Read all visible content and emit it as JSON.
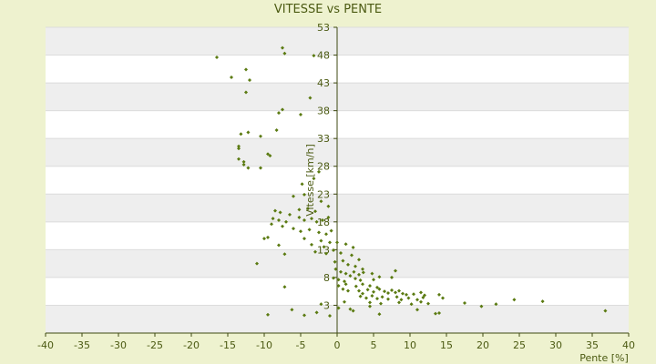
{
  "chart_data": {
    "type": "scatter",
    "title": "VITESSE vs PENTE",
    "xlabel": "Pente [%]",
    "ylabel": "Vitesse [km/h]",
    "xlim": [
      -40,
      40
    ],
    "ylim": [
      -2,
      53
    ],
    "xticks": [
      -40,
      -35,
      -30,
      -25,
      -20,
      -15,
      -10,
      -5,
      0,
      5,
      10,
      15,
      20,
      25,
      30,
      35,
      40
    ],
    "yticks": [
      3,
      8,
      13,
      18,
      23,
      28,
      33,
      38,
      43,
      48,
      53
    ],
    "grid": "horizontal bands",
    "legend": "none",
    "colors": {
      "background": "#eef2cf",
      "band_light": "#ffffff",
      "band_dark": "#eeeeee",
      "marker": "#5a7a10",
      "axis": "#3f4a12",
      "text": "#4b5a12"
    },
    "points": [
      {
        "x": -16.5,
        "y": 47.6
      },
      {
        "x": -14.5,
        "y": 44.0
      },
      {
        "x": -12.5,
        "y": 45.4
      },
      {
        "x": -12.0,
        "y": 43.5
      },
      {
        "x": -12.5,
        "y": 41.3
      },
      {
        "x": -7.5,
        "y": 49.3
      },
      {
        "x": -7.2,
        "y": 48.3
      },
      {
        "x": -3.2,
        "y": 47.9
      },
      {
        "x": -3.7,
        "y": 40.3
      },
      {
        "x": -7.5,
        "y": 38.2
      },
      {
        "x": -8.0,
        "y": 37.6
      },
      {
        "x": -5.0,
        "y": 37.3
      },
      {
        "x": -8.3,
        "y": 34.5
      },
      {
        "x": -13.2,
        "y": 33.8
      },
      {
        "x": -12.2,
        "y": 34.1
      },
      {
        "x": -10.5,
        "y": 33.4
      },
      {
        "x": -13.5,
        "y": 31.6
      },
      {
        "x": -13.5,
        "y": 31.2
      },
      {
        "x": -9.5,
        "y": 30.2
      },
      {
        "x": -9.2,
        "y": 29.9
      },
      {
        "x": -13.5,
        "y": 29.3
      },
      {
        "x": -12.8,
        "y": 28.8
      },
      {
        "x": -12.8,
        "y": 28.3
      },
      {
        "x": -12.2,
        "y": 27.7
      },
      {
        "x": -10.5,
        "y": 27.7
      },
      {
        "x": -2.5,
        "y": 27.0
      },
      {
        "x": -3.2,
        "y": 25.8
      },
      {
        "x": -4.8,
        "y": 24.8
      },
      {
        "x": -6.0,
        "y": 22.6
      },
      {
        "x": -4.5,
        "y": 22.9
      },
      {
        "x": -2.2,
        "y": 21.7
      },
      {
        "x": -1.2,
        "y": 20.8
      },
      {
        "x": -5.2,
        "y": 20.2
      },
      {
        "x": -4.0,
        "y": 20.4
      },
      {
        "x": -3.0,
        "y": 19.9
      },
      {
        "x": -8.5,
        "y": 20.0
      },
      {
        "x": -7.8,
        "y": 19.7
      },
      {
        "x": -6.5,
        "y": 19.3
      },
      {
        "x": -8.8,
        "y": 18.6
      },
      {
        "x": -8.0,
        "y": 18.3
      },
      {
        "x": -7.0,
        "y": 18.0
      },
      {
        "x": -5.2,
        "y": 18.8
      },
      {
        "x": -4.5,
        "y": 18.3
      },
      {
        "x": -3.5,
        "y": 18.6
      },
      {
        "x": -2.8,
        "y": 18.0
      },
      {
        "x": -2.0,
        "y": 18.3
      },
      {
        "x": -1.2,
        "y": 18.8
      },
      {
        "x": -9.0,
        "y": 17.6
      },
      {
        "x": -7.5,
        "y": 17.2
      },
      {
        "x": -6.0,
        "y": 16.8
      },
      {
        "x": -5.0,
        "y": 16.3
      },
      {
        "x": -3.8,
        "y": 16.6
      },
      {
        "x": -2.5,
        "y": 16.1
      },
      {
        "x": -1.5,
        "y": 15.8
      },
      {
        "x": -0.8,
        "y": 16.4
      },
      {
        "x": -10.0,
        "y": 15.0
      },
      {
        "x": -9.5,
        "y": 15.2
      },
      {
        "x": -4.5,
        "y": 15.0
      },
      {
        "x": -2.2,
        "y": 14.6
      },
      {
        "x": -1.0,
        "y": 14.3
      },
      {
        "x": -8.0,
        "y": 13.8
      },
      {
        "x": -3.5,
        "y": 13.9
      },
      {
        "x": -1.8,
        "y": 13.5
      },
      {
        "x": -0.5,
        "y": 12.9
      },
      {
        "x": 0.0,
        "y": 14.3
      },
      {
        "x": 1.2,
        "y": 14.0
      },
      {
        "x": 2.2,
        "y": 13.4
      },
      {
        "x": -7.2,
        "y": 12.2
      },
      {
        "x": -3.0,
        "y": 12.6
      },
      {
        "x": -1.5,
        "y": 12.3
      },
      {
        "x": 0.5,
        "y": 12.4
      },
      {
        "x": 2.0,
        "y": 12.0
      },
      {
        "x": 3.0,
        "y": 11.2
      },
      {
        "x": -11.0,
        "y": 10.5
      },
      {
        "x": -0.3,
        "y": 10.8
      },
      {
        "x": 0.8,
        "y": 11.0
      },
      {
        "x": 1.5,
        "y": 10.3
      },
      {
        "x": 2.5,
        "y": 10.0
      },
      {
        "x": 3.5,
        "y": 9.5
      },
      {
        "x": -0.2,
        "y": 9.5
      },
      {
        "x": 0.5,
        "y": 9.0
      },
      {
        "x": 1.2,
        "y": 8.7
      },
      {
        "x": 1.8,
        "y": 8.3
      },
      {
        "x": 2.3,
        "y": 9.0
      },
      {
        "x": 3.0,
        "y": 8.5
      },
      {
        "x": 3.6,
        "y": 8.9
      },
      {
        "x": 4.8,
        "y": 8.7
      },
      {
        "x": 8.0,
        "y": 9.2
      },
      {
        "x": -0.5,
        "y": 7.9
      },
      {
        "x": 0.2,
        "y": 7.6
      },
      {
        "x": 1.0,
        "y": 7.3
      },
      {
        "x": 2.5,
        "y": 7.8
      },
      {
        "x": 3.2,
        "y": 7.5
      },
      {
        "x": 5.0,
        "y": 7.6
      },
      {
        "x": 5.8,
        "y": 8.1
      },
      {
        "x": 7.5,
        "y": 8.0
      },
      {
        "x": 0.2,
        "y": 6.5
      },
      {
        "x": 1.2,
        "y": 6.8
      },
      {
        "x": 2.6,
        "y": 6.4
      },
      {
        "x": 3.5,
        "y": 6.8
      },
      {
        "x": 4.5,
        "y": 6.5
      },
      {
        "x": 5.5,
        "y": 6.2
      },
      {
        "x": -7.2,
        "y": 6.3
      },
      {
        "x": 0.8,
        "y": 5.9
      },
      {
        "x": 1.5,
        "y": 5.6
      },
      {
        "x": 3.0,
        "y": 5.6
      },
      {
        "x": 3.5,
        "y": 5.1
      },
      {
        "x": 4.2,
        "y": 5.8
      },
      {
        "x": 5.0,
        "y": 5.4
      },
      {
        "x": 5.8,
        "y": 5.9
      },
      {
        "x": 6.5,
        "y": 5.5
      },
      {
        "x": 7.0,
        "y": 5.2
      },
      {
        "x": 7.5,
        "y": 5.7
      },
      {
        "x": 8.0,
        "y": 5.3
      },
      {
        "x": 8.5,
        "y": 5.6
      },
      {
        "x": 9.0,
        "y": 5.1
      },
      {
        "x": 9.5,
        "y": 4.9
      },
      {
        "x": 10.5,
        "y": 5.0
      },
      {
        "x": 11.5,
        "y": 5.3
      },
      {
        "x": 12.0,
        "y": 4.8
      },
      {
        "x": 14.0,
        "y": 4.9
      },
      {
        "x": 3.2,
        "y": 4.6
      },
      {
        "x": 4.0,
        "y": 4.3
      },
      {
        "x": 4.8,
        "y": 4.7
      },
      {
        "x": 5.5,
        "y": 4.2
      },
      {
        "x": 6.2,
        "y": 4.5
      },
      {
        "x": 7.0,
        "y": 4.1
      },
      {
        "x": 8.2,
        "y": 4.5
      },
      {
        "x": 8.8,
        "y": 4.0
      },
      {
        "x": 9.8,
        "y": 4.3
      },
      {
        "x": 11.0,
        "y": 4.0
      },
      {
        "x": 11.8,
        "y": 4.4
      },
      {
        "x": 14.5,
        "y": 4.3
      },
      {
        "x": 4.5,
        "y": 3.5
      },
      {
        "x": 6.0,
        "y": 3.3
      },
      {
        "x": 8.5,
        "y": 3.5
      },
      {
        "x": 10.2,
        "y": 3.2
      },
      {
        "x": 11.5,
        "y": 3.6
      },
      {
        "x": 12.5,
        "y": 3.3
      },
      {
        "x": 17.5,
        "y": 3.4
      },
      {
        "x": 21.8,
        "y": 3.2
      },
      {
        "x": 24.3,
        "y": 4.0
      },
      {
        "x": 28.2,
        "y": 3.7
      },
      {
        "x": 0.2,
        "y": 2.5
      },
      {
        "x": 1.8,
        "y": 2.3
      },
      {
        "x": 2.2,
        "y": 2.0
      },
      {
        "x": 4.5,
        "y": 2.8
      },
      {
        "x": 11.0,
        "y": 2.2
      },
      {
        "x": 13.5,
        "y": 1.5
      },
      {
        "x": 14.0,
        "y": 1.6
      },
      {
        "x": 19.8,
        "y": 2.8
      },
      {
        "x": 36.8,
        "y": 2.0
      },
      {
        "x": -6.2,
        "y": 2.2
      },
      {
        "x": -4.5,
        "y": 1.2
      },
      {
        "x": -2.8,
        "y": 1.7
      },
      {
        "x": -9.5,
        "y": 1.3
      },
      {
        "x": -1.0,
        "y": 1.1
      },
      {
        "x": 5.8,
        "y": 1.4
      },
      {
        "x": -2.2,
        "y": 3.2
      },
      {
        "x": 1.0,
        "y": 3.6
      }
    ]
  }
}
